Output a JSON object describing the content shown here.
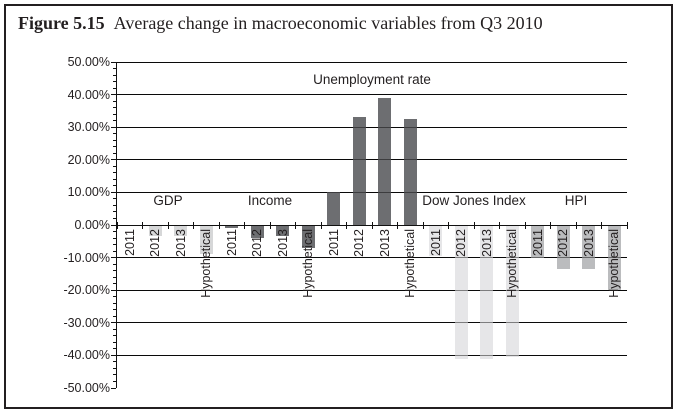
{
  "figure": {
    "title_bold": "Figure 5.15",
    "title_rest": "Average change in macroeconomic variables from Q3 2010"
  },
  "chart_data": {
    "type": "bar",
    "title": "Average change in macroeconomic variables from Q3 2010",
    "categories": [
      "2011",
      "2012",
      "2013",
      "Hypothetical"
    ],
    "series": [
      {
        "name": "GDP",
        "color": "#d6d7d8",
        "values": [
          0,
          -3.5,
          -3.5,
          -9
        ]
      },
      {
        "name": "Income",
        "color": "#6d6e71",
        "values": [
          -1,
          -4,
          -3.5,
          -7
        ]
      },
      {
        "name": "Unemployment rate",
        "color": "#6d6e71",
        "values": [
          10,
          33,
          39,
          32.5
        ]
      },
      {
        "name": "Dow Jones Index",
        "color": "#e6e6e8",
        "values": [
          -9.5,
          -41,
          -41,
          -40.5
        ]
      },
      {
        "name": "HPI",
        "color": "#bbbcbe",
        "values": [
          -10,
          -13.5,
          -13.5,
          -20
        ]
      }
    ],
    "ylim": [
      -50,
      50
    ],
    "ytick_step": 10,
    "ytick_labels": [
      "50.00%",
      "40.00%",
      "30.00%",
      "20.00%",
      "10.00%",
      "0.00%",
      "-10.00%",
      "-20.00%",
      "-30.00%",
      "-40.00%",
      "-50.00%"
    ],
    "ytick_minor_step": 2,
    "grid": true,
    "legend": "none",
    "bar_labels_rotation": -90
  }
}
